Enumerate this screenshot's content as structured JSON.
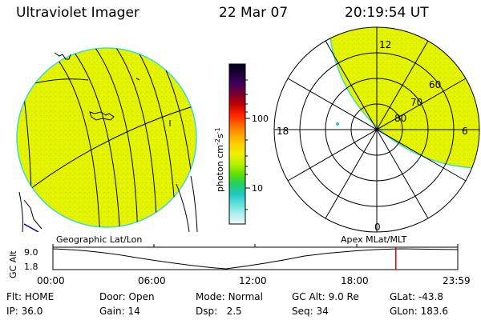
{
  "header": {
    "instrument": "Ultraviolet Imager",
    "date": "22 Mar 07",
    "time": "20:19:54 UT"
  },
  "colors": {
    "image_fill": "#e4f400",
    "rim": "#40d8d0",
    "grid": "#000000",
    "marker": "#e00000"
  },
  "colorbar": {
    "label": "photon cm",
    "label_sup1": "-2",
    "label_mid": "s",
    "label_sup2": "-1",
    "tick_labels": [
      "100",
      "10"
    ],
    "stops": [
      "#000020",
      "#200038",
      "#400060",
      "#7a0030",
      "#c00000",
      "#ff2000",
      "#ff6000",
      "#ffa000",
      "#ffd000",
      "#f0f000",
      "#b8f000",
      "#60e000",
      "#20d060",
      "#20c8c0",
      "#60e0e0",
      "#b0f0f0",
      "#f0f8f8"
    ]
  },
  "polar_plot": {
    "mlt_labels": {
      "top": "12",
      "left": "18",
      "right": "6",
      "bottom": "0"
    },
    "lat_labels": [
      "60",
      "70",
      "80"
    ]
  },
  "captions": {
    "left": "Geographic Lat/Lon",
    "right": "Apex MLat/MLT"
  },
  "altitude_plot": {
    "ylabel": "GC Alt",
    "y_top": "9.0",
    "y_bottom": "1.8",
    "x_labels": [
      "00:00",
      "06:00",
      "12:00",
      "18:00",
      "23:59"
    ],
    "marker_time_hours": 20.33
  },
  "status": {
    "row1": [
      {
        "label": "Flt:",
        "value": "HOME"
      },
      {
        "label": "Door:",
        "value": "Open"
      },
      {
        "label": "Mode:",
        "value": "Normal"
      },
      {
        "label": "GC Alt:",
        "value": "9.0 Re"
      },
      {
        "label": "GLat:",
        "value": "-43.8"
      }
    ],
    "row2": [
      {
        "label": "IP:",
        "value": "36.0"
      },
      {
        "label": "Gain:",
        "value": "14"
      },
      {
        "label": "Dsp:",
        "value": "2.5"
      },
      {
        "label": "Seq:",
        "value": "34"
      },
      {
        "label": "GLon:",
        "value": "183.6"
      }
    ]
  }
}
